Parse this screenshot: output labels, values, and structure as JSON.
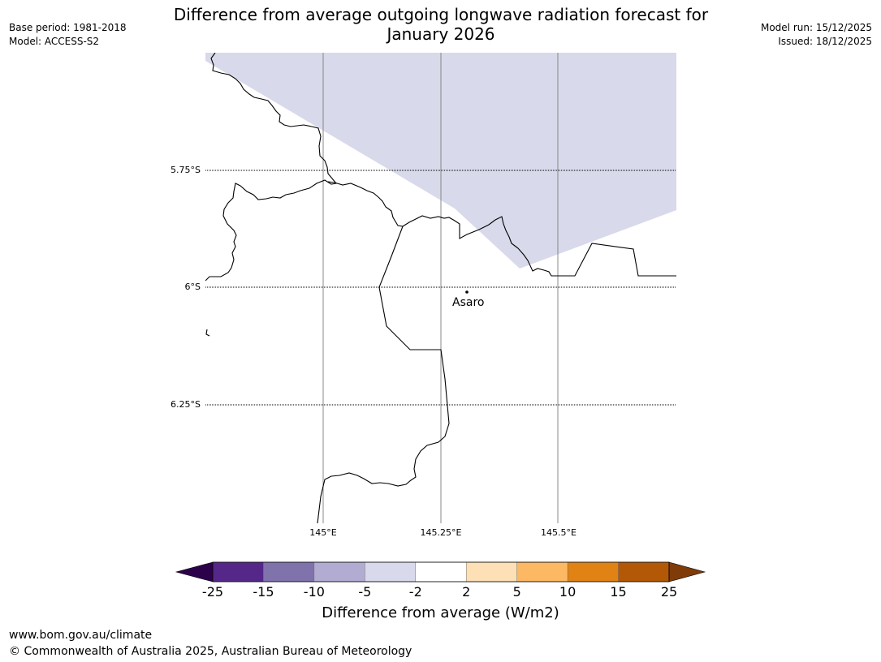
{
  "header": {
    "title_line1": "Difference from average outgoing longwave radiation forecast for",
    "title_line2": "January 2026",
    "base_period": "Base period: 1981-2018",
    "model": "Model: ACCESS-S2",
    "model_run": "Model run: 15/12/2025",
    "issued": "Issued: 18/12/2025"
  },
  "map": {
    "lat_labels": [
      "5.75°S",
      "6°S",
      "6.25°S"
    ],
    "lon_labels": [
      "145°E",
      "145.25°E",
      "145.5°E"
    ],
    "place": "Asaro",
    "shaded_category": "-5 to -2",
    "shading_color": "#d8d9ea"
  },
  "colorbar": {
    "title": "Difference from average (W/m2)",
    "ticks": [
      "-25",
      "-15",
      "-10",
      "-5",
      "-2",
      "2",
      "5",
      "10",
      "15",
      "25"
    ],
    "colors": [
      "#2d004b",
      "#542788",
      "#8073ac",
      "#b2abd2",
      "#d8daeb",
      "#ffffff",
      "#fee0b6",
      "#fdb863",
      "#e08214",
      "#b35806",
      "#7f3b08"
    ]
  },
  "footer": {
    "url": "www.bom.gov.au/climate",
    "copyright": "© Commonwealth of Australia 2025, Australian Bureau of Meteorology"
  }
}
